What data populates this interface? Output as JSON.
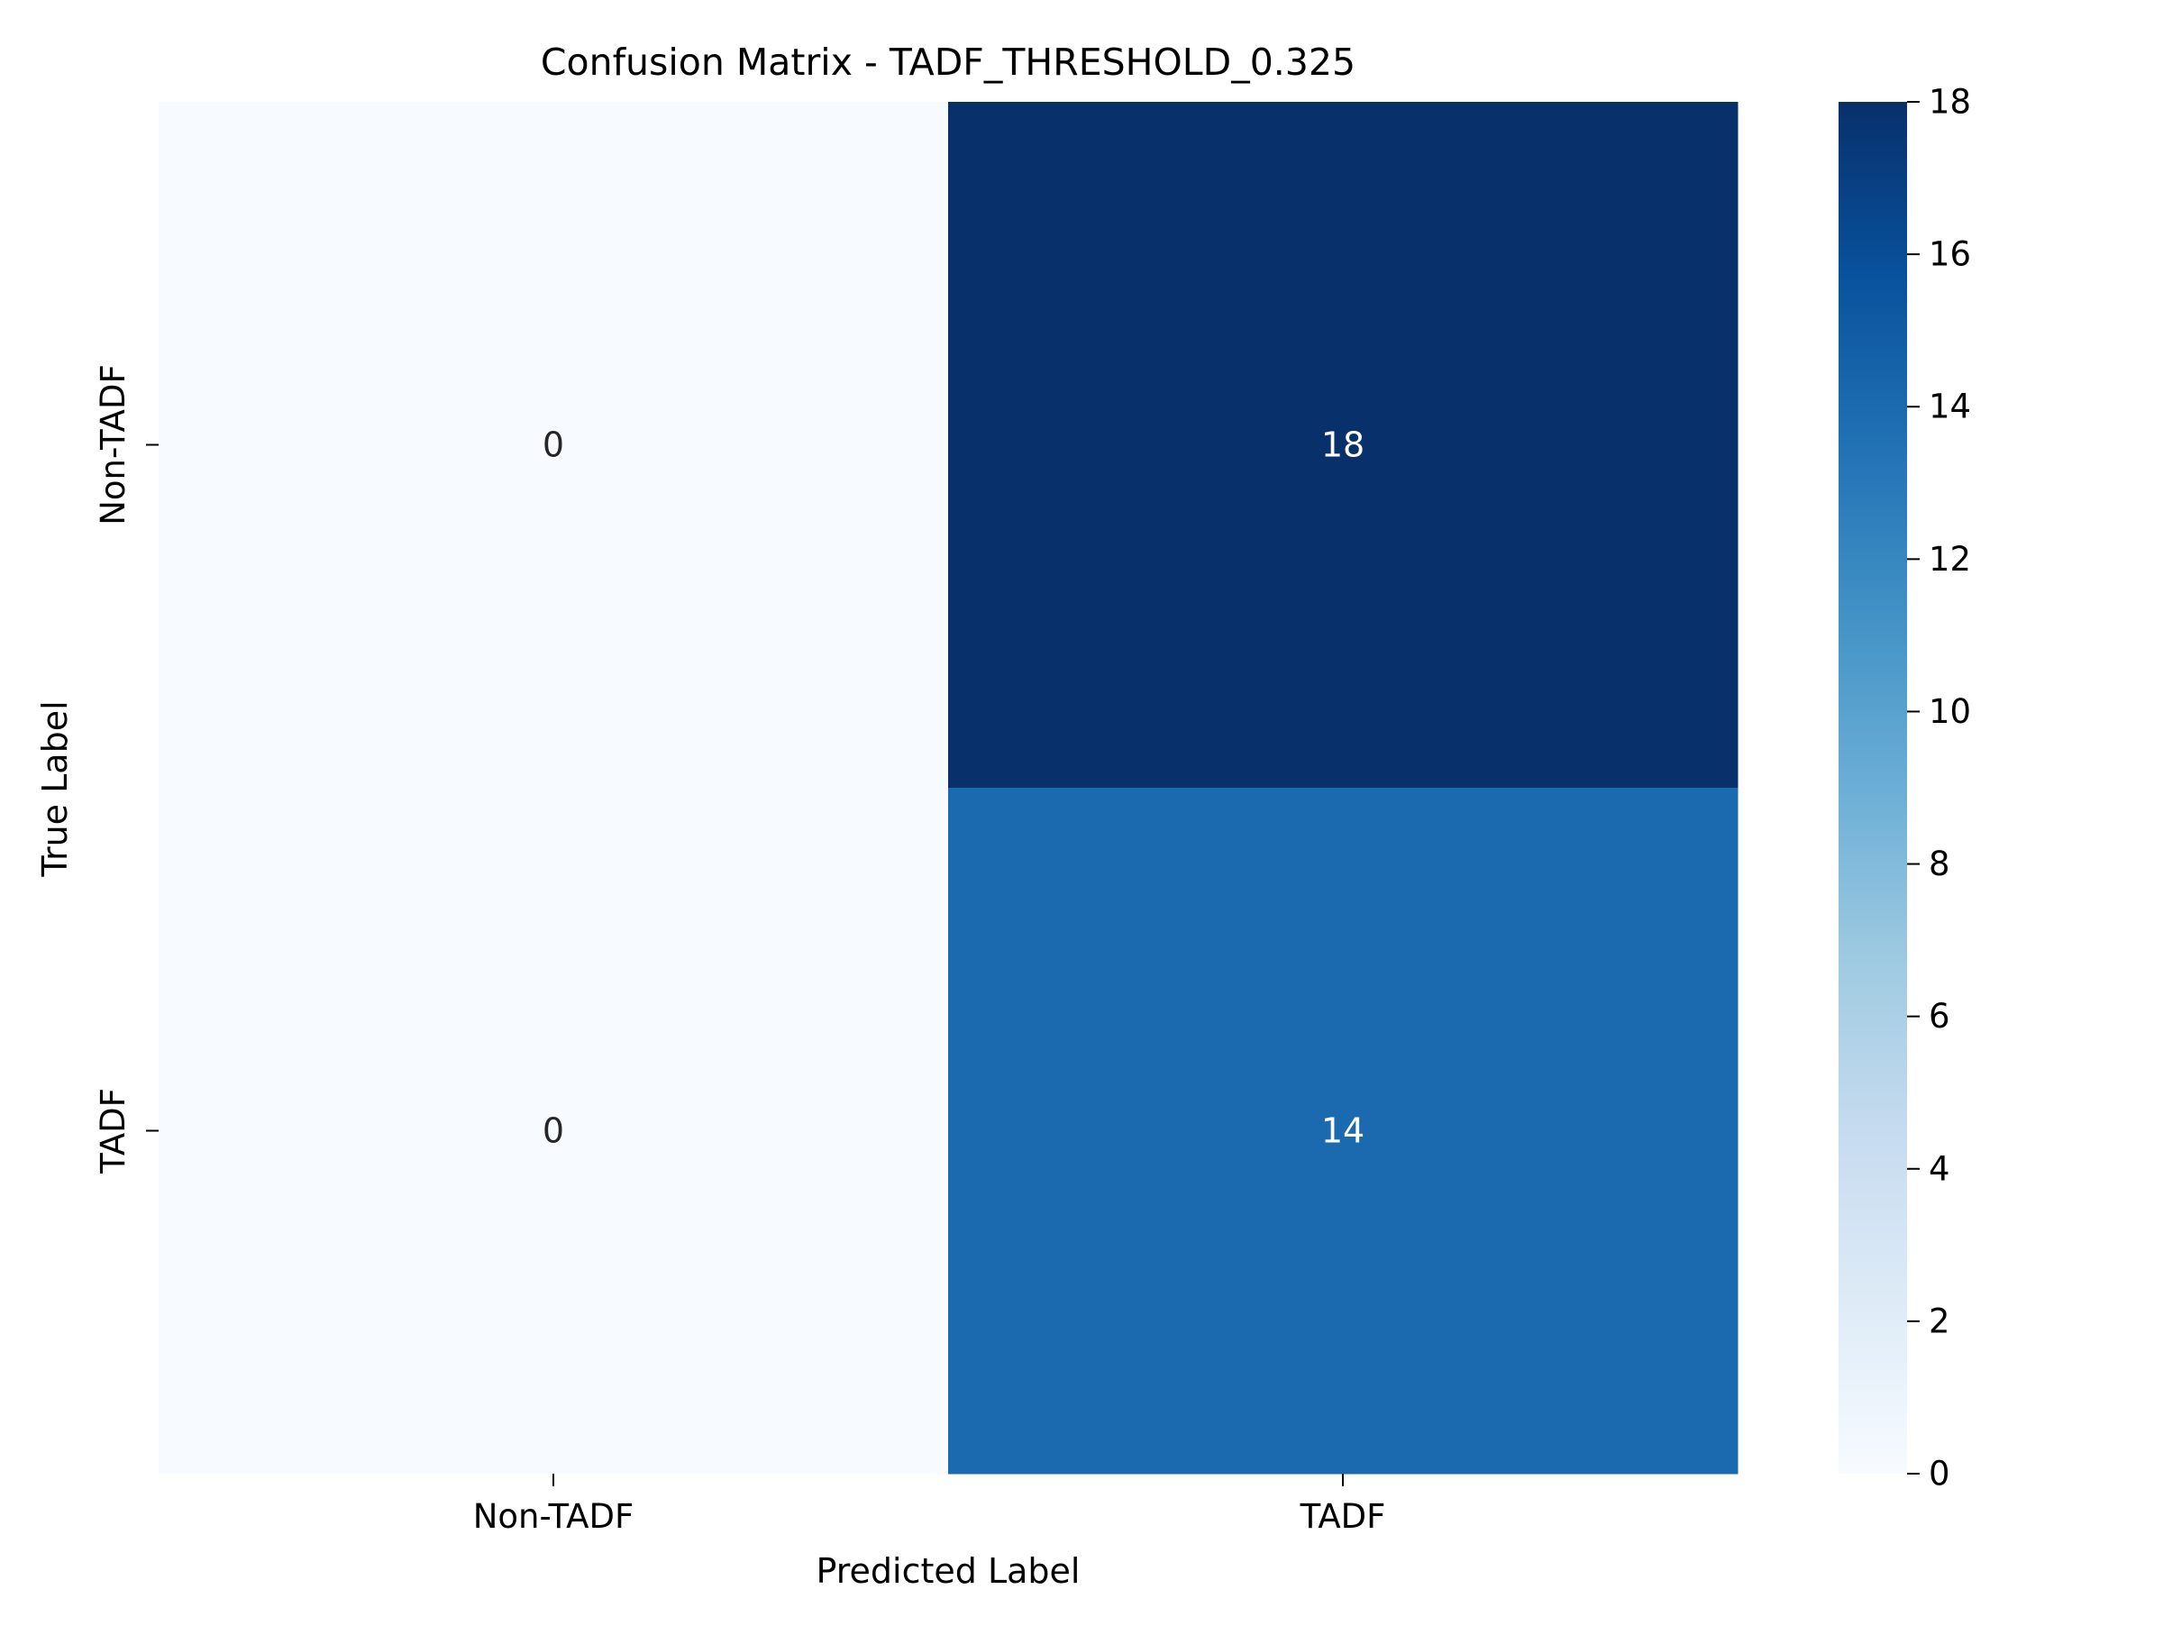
{
  "chart_data": {
    "type": "heatmap",
    "title": "Confusion Matrix - TADF_THRESHOLD_0.325",
    "xlabel": "Predicted Label",
    "ylabel": "True Label",
    "x_categories": [
      "Non-TADF",
      "TADF"
    ],
    "y_categories": [
      "Non-TADF",
      "TADF"
    ],
    "values": [
      [
        0,
        18
      ],
      [
        0,
        14
      ]
    ],
    "colormap": "Blues",
    "colorbar": {
      "range": [
        0,
        18
      ],
      "ticks": [
        0,
        2,
        4,
        6,
        8,
        10,
        12,
        14,
        16,
        18
      ]
    },
    "annotations": true,
    "grid": false
  }
}
